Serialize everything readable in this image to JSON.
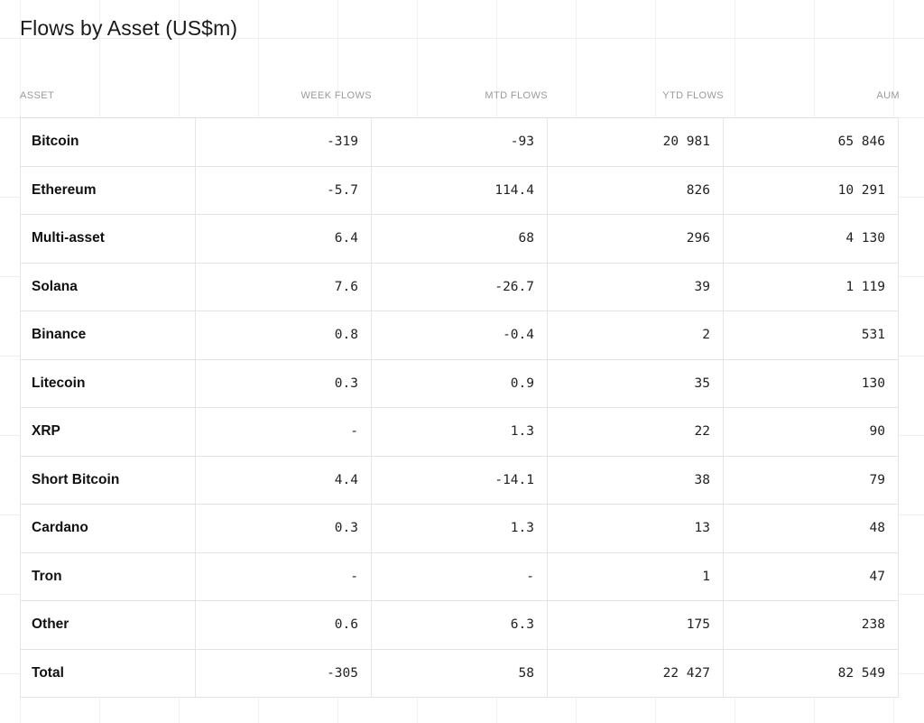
{
  "chart_data": {
    "type": "table",
    "title": "Flows by Asset (US$m)",
    "columns": [
      "ASSET",
      "WEEK FLOWS",
      "MTD FLOWS",
      "YTD FLOWS",
      "AUM"
    ],
    "rows": [
      [
        "Bitcoin",
        "-319",
        "-93",
        "20 981",
        "65 846"
      ],
      [
        "Ethereum",
        "-5.7",
        "114.4",
        "826",
        "10 291"
      ],
      [
        "Multi-asset",
        "6.4",
        "68",
        "296",
        "4 130"
      ],
      [
        "Solana",
        "7.6",
        "-26.7",
        "39",
        "1 119"
      ],
      [
        "Binance",
        "0.8",
        "-0.4",
        "2",
        "531"
      ],
      [
        "Litecoin",
        "0.3",
        "0.9",
        "35",
        "130"
      ],
      [
        "XRP",
        "-",
        "1.3",
        "22",
        "90"
      ],
      [
        "Short Bitcoin",
        "4.4",
        "-14.1",
        "38",
        "79"
      ],
      [
        "Cardano",
        "0.3",
        "1.3",
        "13",
        "48"
      ],
      [
        "Tron",
        "-",
        "-",
        "1",
        "47"
      ],
      [
        "Other",
        "0.6",
        "6.3",
        "175",
        "238"
      ],
      [
        "Total",
        "-305",
        "58",
        "22 427",
        "82 549"
      ]
    ]
  }
}
